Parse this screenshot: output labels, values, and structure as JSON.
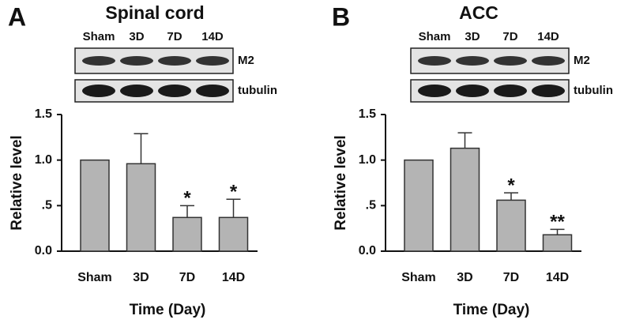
{
  "chart_data": [
    {
      "type": "bar",
      "panel": "A",
      "title": "Spinal cord",
      "blot_lanes": [
        "Sham",
        "3D",
        "7D",
        "14D"
      ],
      "blot_labels": [
        "M2",
        "tubulin"
      ],
      "categories": [
        "Sham",
        "3D",
        "7D",
        "14D"
      ],
      "series": [
        {
          "color": "#b4b4b4",
          "values": [
            1.0,
            0.96,
            0.37,
            0.37
          ],
          "errors": [
            0,
            0.33,
            0.13,
            0.2
          ]
        }
      ],
      "annotations": [
        null,
        null,
        "*",
        "*"
      ],
      "y_label": "Relative level",
      "x_label": "Time (Day)",
      "ylim": [
        0,
        1.5
      ],
      "yticks": [
        {
          "value": 0,
          "label": "0.0"
        },
        {
          "value": 0.5,
          "label": ".5"
        },
        {
          "value": 1,
          "label": "1.0"
        },
        {
          "value": 1.5,
          "label": "1.5"
        }
      ]
    },
    {
      "type": "bar",
      "panel": "B",
      "title": "ACC",
      "blot_lanes": [
        "Sham",
        "3D",
        "7D",
        "14D"
      ],
      "blot_labels": [
        "M2",
        "tubulin"
      ],
      "categories": [
        "Sham",
        "3D",
        "7D",
        "14D"
      ],
      "series": [
        {
          "color": "#b4b4b4",
          "values": [
            1.0,
            1.13,
            0.56,
            0.18
          ],
          "errors": [
            0,
            0.17,
            0.08,
            0.06
          ]
        }
      ],
      "annotations": [
        null,
        null,
        "*",
        "**"
      ],
      "y_label": "Relative level",
      "x_label": "Time (Day)",
      "ylim": [
        0,
        1.5
      ],
      "yticks": [
        {
          "value": 0,
          "label": "0.0"
        },
        {
          "value": 0.5,
          "label": ".5"
        },
        {
          "value": 1,
          "label": "1.0"
        },
        {
          "value": 1.5,
          "label": "1.5"
        }
      ]
    }
  ]
}
